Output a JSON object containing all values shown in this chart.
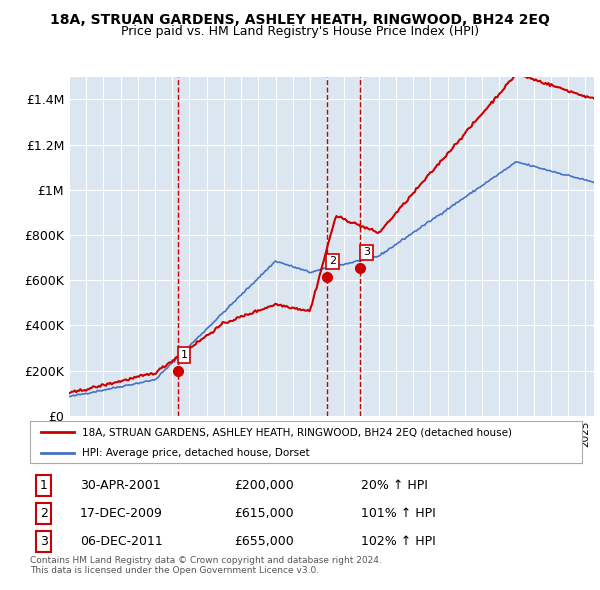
{
  "title": "18A, STRUAN GARDENS, ASHLEY HEATH, RINGWOOD, BH24 2EQ",
  "subtitle": "Price paid vs. HM Land Registry's House Price Index (HPI)",
  "bg_color": "#dce6f0",
  "sale_color": "#cc0000",
  "hpi_color": "#4472c4",
  "ylim": [
    0,
    1500000
  ],
  "yticks": [
    0,
    200000,
    400000,
    600000,
    800000,
    1000000,
    1200000,
    1400000
  ],
  "ytick_labels": [
    "£0",
    "£200K",
    "£400K",
    "£600K",
    "£800K",
    "£1M",
    "£1.2M",
    "£1.4M"
  ],
  "sales": [
    {
      "date_num": 2001.33,
      "price": 200000,
      "label": "1"
    },
    {
      "date_num": 2009.96,
      "price": 615000,
      "label": "2"
    },
    {
      "date_num": 2011.93,
      "price": 655000,
      "label": "3"
    }
  ],
  "legend_sale_label": "18A, STRUAN GARDENS, ASHLEY HEATH, RINGWOOD, BH24 2EQ (detached house)",
  "legend_hpi_label": "HPI: Average price, detached house, Dorset",
  "table_rows": [
    {
      "num": "1",
      "date": "30-APR-2001",
      "price": "£200,000",
      "change": "20% ↑ HPI"
    },
    {
      "num": "2",
      "date": "17-DEC-2009",
      "price": "£615,000",
      "change": "101% ↑ HPI"
    },
    {
      "num": "3",
      "date": "06-DEC-2011",
      "price": "£655,000",
      "change": "102% ↑ HPI"
    }
  ],
  "footer": "Contains HM Land Registry data © Crown copyright and database right 2024.\nThis data is licensed under the Open Government Licence v3.0.",
  "xmin": 1995,
  "xmax": 2025.5
}
